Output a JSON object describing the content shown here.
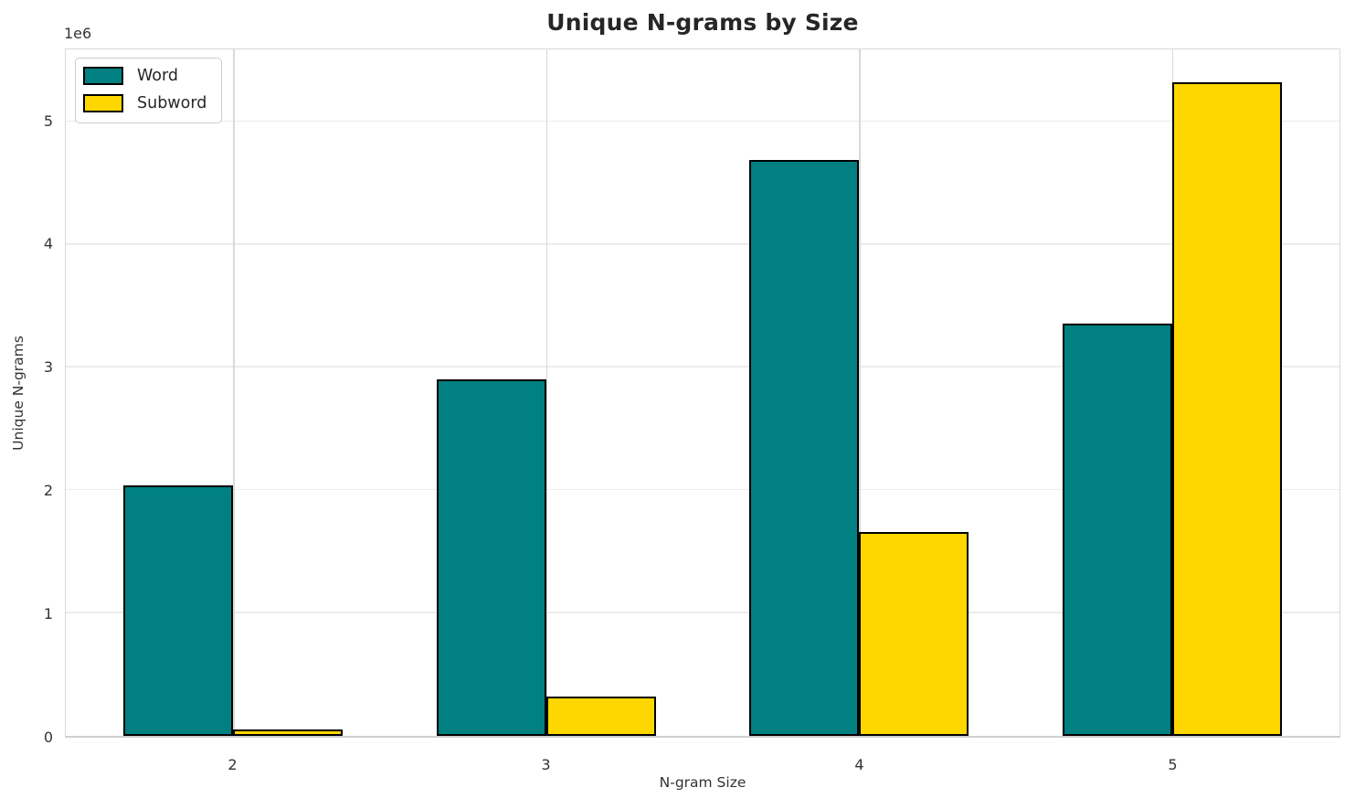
{
  "title": "Unique N-grams by Size",
  "axes": {
    "xlabel": "N-gram Size",
    "ylabel": "Unique N-grams",
    "y_offset_label": "1e6",
    "x_tick_labels": [
      "2",
      "3",
      "4",
      "5"
    ],
    "y_tick_labels": [
      "0",
      "1",
      "2",
      "3",
      "4",
      "5"
    ]
  },
  "legend": {
    "position": "upper left",
    "items": [
      {
        "label": "Word",
        "color": "#008080"
      },
      {
        "label": "Subword",
        "color": "#ffd700"
      }
    ]
  },
  "chart_data": {
    "type": "bar",
    "title": "Unique N-grams by Size",
    "xlabel": "N-gram Size",
    "ylabel": "Unique N-grams",
    "categories": [
      2,
      3,
      4,
      5
    ],
    "series": [
      {
        "name": "Word",
        "color": "#008080",
        "values": [
          2040000,
          2900000,
          4690000,
          3360000
        ]
      },
      {
        "name": "Subword",
        "color": "#ffd700",
        "values": [
          50000,
          320000,
          1660000,
          5320000
        ]
      }
    ],
    "bar_width": 0.35,
    "ylim": [
      0,
      5590000
    ],
    "y_tick_interval": 1000000,
    "y_scale_factor": 1000000,
    "grid": true,
    "legend_position": "upper left",
    "bar_edge_color": "#000000",
    "bar_edge_width": 2
  },
  "colors": {
    "word": "#008080",
    "subword": "#ffd700",
    "grid_horizontal": "#ececec",
    "grid_vertical": "#d9d9d9",
    "spine": "#d4d4d4",
    "text": "#333333",
    "title_text": "#262626",
    "background": "#ffffff"
  }
}
